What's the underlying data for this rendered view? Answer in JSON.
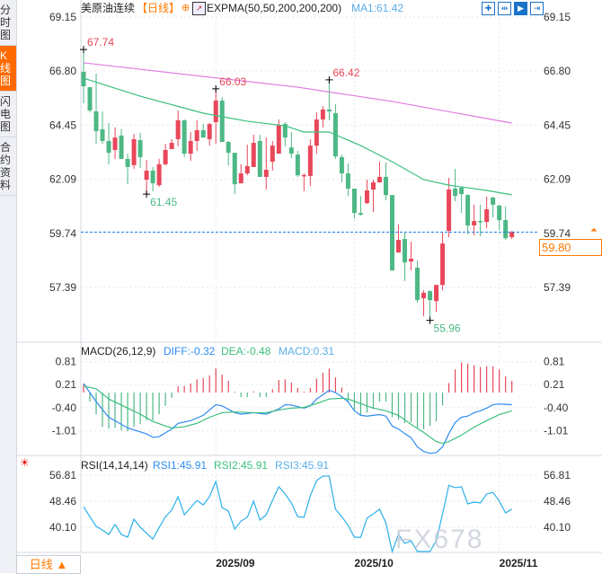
{
  "sidebar": {
    "tabs": [
      {
        "label": "分时图",
        "active": false
      },
      {
        "label": "K线图",
        "active": true
      },
      {
        "label": "闪电图",
        "active": false
      },
      {
        "label": "合约资料",
        "active": false
      }
    ]
  },
  "header": {
    "instrument": "美原油连续",
    "period_tag": "【日线】",
    "indicator": "EXPMA(50,50,200,200,200)",
    "ma1": "MA1:61.42"
  },
  "toolbar": {
    "icons": [
      "crosshair-icon",
      "zoom-range-icon",
      "play-icon",
      "exit-right-icon"
    ]
  },
  "macd_header": {
    "title": "MACD(26,12,9)",
    "diff": "DIFF:-0.32",
    "dea": "DEA:-0.48",
    "macd": "MACD:0.31"
  },
  "rsi_header": {
    "title": "RSI(14,14,14)",
    "rsi1": "RSI1:45.91",
    "rsi2": "RSI2:45.91",
    "rsi3": "RSI3:45.91"
  },
  "period_button": "日线 ▲",
  "watermark": "FX678",
  "current_price": "59.80",
  "colors": {
    "up": "#e8475a",
    "down": "#4db885",
    "ema_fast": "#3cbf7e",
    "ema_slow": "#e07be0",
    "diff": "#2f8cf0",
    "dea": "#3cbf7e",
    "rsi": "#2bb0e8",
    "accent": "#ff7a00",
    "price_line": "#1e7ff0"
  },
  "chart_data": [
    {
      "type": "candlestick",
      "yticks": [
        "69.15",
        "66.80",
        "64.45",
        "62.09",
        "59.74",
        "57.39"
      ],
      "ylim": [
        57.39,
        69.15
      ],
      "xticks": [
        {
          "label": "2025/09",
          "bar": 21
        },
        {
          "label": "2025/10",
          "bar": 43
        },
        {
          "label": "2025/11",
          "bar": 66
        }
      ],
      "annotations": [
        {
          "text": "67.74",
          "bar": 0,
          "value": 67.74,
          "kind": "high"
        },
        {
          "text": "61.45",
          "bar": 10,
          "value": 61.45,
          "kind": "low"
        },
        {
          "text": "66.03",
          "bar": 21,
          "value": 66.03,
          "kind": "high"
        },
        {
          "text": "66.42",
          "bar": 39,
          "value": 66.42,
          "kind": "high"
        },
        {
          "text": "55.96",
          "bar": 55,
          "value": 55.96,
          "kind": "low"
        }
      ],
      "ohlc": [
        [
          66.77,
          67.74,
          65.4,
          66.14
        ],
        [
          66.1,
          66.1,
          65.0,
          65.09
        ],
        [
          65.05,
          66.69,
          63.64,
          64.19
        ],
        [
          64.27,
          65.05,
          63.64,
          63.76
        ],
        [
          63.76,
          64.54,
          62.74,
          63.25
        ],
        [
          63.37,
          64.35,
          62.98,
          63.91
        ],
        [
          64.0,
          64.27,
          62.98,
          62.98
        ],
        [
          62.98,
          63.21,
          61.88,
          62.63
        ],
        [
          62.71,
          64.07,
          62.55,
          63.84
        ],
        [
          63.8,
          64.11,
          62.59,
          63.06
        ],
        [
          62.08,
          62.94,
          61.45,
          62.47
        ],
        [
          62.47,
          62.63,
          61.57,
          61.92
        ],
        [
          61.84,
          62.98,
          61.77,
          62.75
        ],
        [
          62.75,
          63.64,
          62.7,
          63.37
        ],
        [
          63.41,
          63.84,
          63.41,
          63.68
        ],
        [
          63.84,
          65.09,
          63.53,
          64.66
        ],
        [
          64.66,
          64.7,
          63.06,
          63.21
        ],
        [
          63.21,
          64.15,
          62.9,
          63.76
        ],
        [
          63.76,
          64.66,
          63.33,
          64.23
        ],
        [
          64.23,
          64.5,
          63.91,
          63.91
        ],
        [
          63.84,
          64.54,
          63.56,
          64.5
        ],
        [
          64.58,
          66.03,
          63.64,
          65.52
        ],
        [
          65.52,
          65.67,
          63.72,
          63.72
        ],
        [
          63.72,
          63.76,
          62.7,
          63.25
        ],
        [
          63.25,
          63.25,
          61.45,
          61.88
        ],
        [
          61.92,
          62.75,
          61.92,
          62.35
        ],
        [
          62.35,
          63.6,
          62.27,
          62.67
        ],
        [
          62.63,
          64.03,
          62.63,
          63.68
        ],
        [
          63.76,
          64.03,
          62.2,
          62.2
        ],
        [
          62.2,
          63.91,
          61.65,
          62.51
        ],
        [
          62.86,
          63.76,
          62.47,
          63.56
        ],
        [
          63.21,
          64.7,
          63.25,
          64.46
        ],
        [
          64.5,
          64.58,
          63.53,
          63.91
        ],
        [
          63.48,
          64.15,
          63.02,
          63.21
        ],
        [
          63.17,
          63.33,
          62.2,
          62.27
        ],
        [
          62.24,
          62.35,
          61.57,
          62.28
        ],
        [
          62.24,
          63.84,
          61.8,
          63.56
        ],
        [
          63.56,
          65.01,
          63.21,
          64.7
        ],
        [
          64.7,
          65.28,
          64.35,
          65.13
        ],
        [
          65.13,
          66.42,
          64.66,
          65.05
        ],
        [
          64.97,
          65.36,
          62.98,
          63.09
        ],
        [
          63.06,
          63.17,
          61.96,
          62.35
        ],
        [
          62.35,
          62.78,
          61.37,
          61.69
        ],
        [
          61.69,
          61.69,
          60.4,
          60.63
        ],
        [
          60.63,
          61.37,
          60.52,
          60.56
        ],
        [
          61.06,
          62.08,
          61.02,
          61.61
        ],
        [
          61.65,
          62.08,
          60.67,
          61.96
        ],
        [
          61.96,
          62.86,
          61.96,
          62.2
        ],
        [
          62.2,
          62.82,
          61.18,
          61.41
        ],
        [
          61.41,
          61.41,
          58.13,
          58.13
        ],
        [
          58.91,
          60.13,
          58.91,
          59.46
        ],
        [
          59.5,
          59.77,
          57.67,
          58.48
        ],
        [
          58.52,
          59.38,
          58.13,
          58.64
        ],
        [
          58.25,
          58.56,
          56.73,
          56.84
        ],
        [
          56.92,
          57.27,
          56.14,
          57.16
        ],
        [
          57.23,
          57.27,
          55.96,
          56.84
        ],
        [
          56.8,
          57.5,
          56.33,
          57.5
        ],
        [
          57.5,
          59.77,
          57.27,
          59.3
        ],
        [
          59.85,
          62.16,
          59.58,
          61.65
        ],
        [
          61.69,
          62.55,
          61.14,
          61.37
        ],
        [
          61.73,
          61.8,
          60.63,
          61.45
        ],
        [
          61.41,
          61.45,
          59.7,
          60.09
        ],
        [
          60.09,
          60.99,
          59.66,
          60.28
        ],
        [
          60.28,
          60.99,
          59.62,
          60.24
        ],
        [
          60.24,
          61.34,
          59.97,
          60.79
        ],
        [
          61.3,
          61.34,
          60.44,
          60.99
        ],
        [
          60.95,
          60.99,
          59.89,
          60.32
        ],
        [
          60.32,
          60.91,
          59.46,
          59.54
        ],
        [
          59.58,
          59.85,
          59.5,
          59.8
        ]
      ],
      "lines": [
        {
          "key": "ema_fast",
          "points": [
            [
              0,
              66.49
            ],
            [
              9,
              65.71
            ],
            [
              19,
              64.97
            ],
            [
              26,
              64.62
            ],
            [
              32,
              64.42
            ],
            [
              35,
              64.15
            ],
            [
              39,
              64.15
            ],
            [
              44,
              63.56
            ],
            [
              49,
              62.86
            ],
            [
              54,
              62.08
            ],
            [
              58,
              61.84
            ],
            [
              64,
              61.61
            ],
            [
              68,
              61.42
            ]
          ]
        },
        {
          "key": "ema_slow",
          "points": [
            [
              0,
              67.16
            ],
            [
              34,
              66.1
            ],
            [
              49,
              65.48
            ],
            [
              68,
              64.54
            ]
          ]
        }
      ],
      "last_price": 59.8
    },
    {
      "type": "macd",
      "yticks": [
        "0.81",
        "0.21",
        "-0.40",
        "-1.01"
      ],
      "ylim": [
        -1.3,
        1.0
      ],
      "histogram": [
        0.21,
        -0.24,
        -0.57,
        -0.9,
        -0.95,
        -0.93,
        -0.99,
        -1.02,
        -0.9,
        -0.83,
        -0.73,
        -0.73,
        -0.57,
        -0.35,
        -0.14,
        0.17,
        0.17,
        0.24,
        0.35,
        0.38,
        0.45,
        0.64,
        0.47,
        0.31,
        0.02,
        -0.12,
        -0.12,
        0.03,
        -0.12,
        -0.12,
        0.09,
        0.33,
        0.35,
        0.26,
        0.12,
        0.02,
        0.12,
        0.37,
        0.52,
        0.63,
        0.4,
        0.13,
        -0.24,
        -0.46,
        -0.6,
        -0.53,
        -0.43,
        -0.24,
        -0.24,
        -0.65,
        -0.71,
        -0.8,
        -0.79,
        -0.93,
        -0.96,
        -0.88,
        -0.76,
        -0.34,
        0.25,
        0.61,
        0.79,
        0.76,
        0.72,
        0.67,
        0.69,
        0.69,
        0.61,
        0.43,
        0.31
      ],
      "diff": [
        [
          0,
          0.24
        ],
        [
          2,
          -0.24
        ],
        [
          4,
          -0.65
        ],
        [
          7,
          -0.93
        ],
        [
          10,
          -1.09
        ],
        [
          11,
          -1.18
        ],
        [
          12,
          -1.16
        ],
        [
          14,
          -0.96
        ],
        [
          15,
          -0.81
        ],
        [
          17,
          -0.74
        ],
        [
          19,
          -0.6
        ],
        [
          21,
          -0.32
        ],
        [
          22,
          -0.35
        ],
        [
          24,
          -0.53
        ],
        [
          25,
          -0.57
        ],
        [
          27,
          -0.53
        ],
        [
          29,
          -0.57
        ],
        [
          31,
          -0.43
        ],
        [
          32,
          -0.32
        ],
        [
          33,
          -0.33
        ],
        [
          34,
          -0.37
        ],
        [
          35,
          -0.41
        ],
        [
          36,
          -0.35
        ],
        [
          37,
          -0.17
        ],
        [
          38,
          -0.06
        ],
        [
          39,
          0.06
        ],
        [
          40,
          0.0
        ],
        [
          41,
          -0.11
        ],
        [
          42,
          -0.25
        ],
        [
          43,
          -0.48
        ],
        [
          44,
          -0.6
        ],
        [
          45,
          -0.62
        ],
        [
          46,
          -0.6
        ],
        [
          47,
          -0.58
        ],
        [
          48,
          -0.62
        ],
        [
          49,
          -0.88
        ],
        [
          50,
          -0.96
        ],
        [
          51,
          -1.08
        ],
        [
          52,
          -1.19
        ],
        [
          53,
          -1.43
        ],
        [
          54,
          -1.55
        ],
        [
          55,
          -1.6
        ],
        [
          56,
          -1.58
        ],
        [
          57,
          -1.43
        ],
        [
          58,
          -1.08
        ],
        [
          59,
          -0.79
        ],
        [
          60,
          -0.65
        ],
        [
          61,
          -0.62
        ],
        [
          62,
          -0.53
        ],
        [
          63,
          -0.48
        ],
        [
          64,
          -0.41
        ],
        [
          65,
          -0.32
        ],
        [
          66,
          -0.3
        ],
        [
          67,
          -0.31
        ],
        [
          68,
          -0.32
        ]
      ],
      "dea": [
        [
          0,
          0.17
        ],
        [
          2,
          0.1
        ],
        [
          4,
          -0.17
        ],
        [
          7,
          -0.41
        ],
        [
          9,
          -0.57
        ],
        [
          11,
          -0.76
        ],
        [
          13,
          -0.88
        ],
        [
          14,
          -0.93
        ],
        [
          16,
          -0.9
        ],
        [
          18,
          -0.81
        ],
        [
          20,
          -0.65
        ],
        [
          22,
          -0.53
        ],
        [
          24,
          -0.51
        ],
        [
          27,
          -0.53
        ],
        [
          29,
          -0.53
        ],
        [
          31,
          -0.46
        ],
        [
          33,
          -0.41
        ],
        [
          35,
          -0.39
        ],
        [
          37,
          -0.29
        ],
        [
          39,
          -0.17
        ],
        [
          41,
          -0.15
        ],
        [
          42,
          -0.17
        ],
        [
          44,
          -0.29
        ],
        [
          46,
          -0.41
        ],
        [
          48,
          -0.48
        ],
        [
          50,
          -0.6
        ],
        [
          52,
          -0.84
        ],
        [
          54,
          -1.05
        ],
        [
          56,
          -1.29
        ],
        [
          57,
          -1.34
        ],
        [
          58,
          -1.29
        ],
        [
          60,
          -1.12
        ],
        [
          62,
          -0.91
        ],
        [
          64,
          -0.74
        ],
        [
          66,
          -0.58
        ],
        [
          68,
          -0.48
        ]
      ]
    },
    {
      "type": "line",
      "name": "RSI",
      "yticks": [
        "56.81",
        "48.46",
        "40.10"
      ],
      "ylim": [
        26,
        61
      ],
      "values": [
        46.7,
        43.5,
        40.4,
        39.2,
        37.8,
        41.0,
        37.8,
        36.9,
        42.7,
        40.1,
        38.2,
        36.3,
        40.0,
        43.5,
        45.6,
        49.9,
        44.1,
        46.4,
        48.7,
        47.3,
        49.9,
        54.8,
        46.4,
        45.3,
        39.5,
        42.1,
        43.3,
        48.5,
        42.4,
        44.1,
        48.7,
        53.1,
        50.8,
        47.9,
        43.5,
        43.3,
        50.2,
        55.1,
        56.5,
        56.5,
        45.9,
        43.5,
        40.7,
        36.9,
        36.9,
        43.0,
        44.4,
        45.9,
        41.5,
        29.5,
        37.8,
        34.9,
        35.8,
        29.1,
        30.0,
        29.1,
        35.8,
        44.4,
        53.6,
        52.8,
        53.1,
        47.6,
        48.2,
        47.9,
        50.8,
        51.3,
        48.5,
        44.7,
        45.91
      ]
    }
  ]
}
